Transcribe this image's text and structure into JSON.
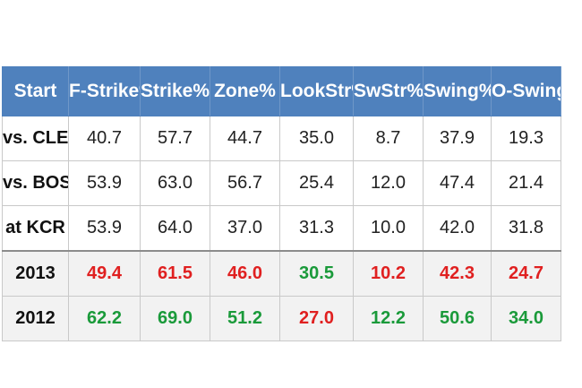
{
  "table": {
    "columns": [
      "Start",
      "F-Strike%",
      "Strike%",
      "Zone%",
      "LookStr%",
      "SwStr%",
      "Swing%",
      "O-Swing%"
    ],
    "rows": [
      {
        "label": "vs. CLE",
        "values": [
          "40.7",
          "57.7",
          "44.7",
          "35.0",
          "8.7",
          "37.9",
          "19.3"
        ]
      },
      {
        "label": "vs. BOS",
        "values": [
          "53.9",
          "63.0",
          "56.7",
          "25.4",
          "12.0",
          "47.4",
          "21.4"
        ]
      },
      {
        "label": "at KCR",
        "values": [
          "53.9",
          "64.0",
          "37.0",
          "31.3",
          "10.0",
          "42.0",
          "31.8"
        ]
      },
      {
        "label": "2013",
        "values": [
          "49.4",
          "61.5",
          "46.0",
          "30.5",
          "10.2",
          "42.3",
          "24.7"
        ],
        "value_colors": [
          "red",
          "red",
          "red",
          "green",
          "red",
          "red",
          "red"
        ]
      },
      {
        "label": "2012",
        "values": [
          "62.2",
          "69.0",
          "51.2",
          "27.0",
          "12.2",
          "50.6",
          "34.0"
        ],
        "value_colors": [
          "green",
          "green",
          "green",
          "red",
          "green",
          "green",
          "green"
        ]
      }
    ]
  },
  "colors": {
    "header_bg": "#4f81bd",
    "header_text": "#ffffff",
    "summary_bg": "#f2f2f2",
    "red": "#e02020",
    "green": "#1a9a3a"
  }
}
